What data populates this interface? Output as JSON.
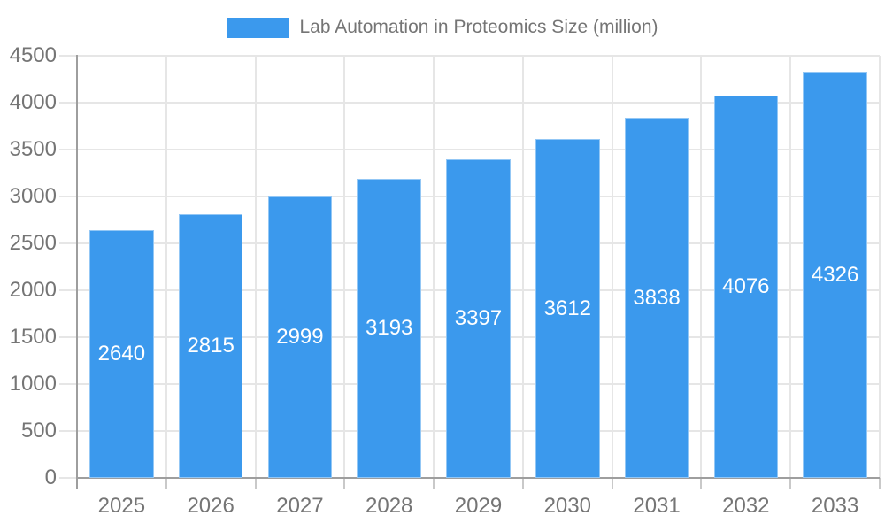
{
  "chart_data": {
    "type": "bar",
    "title": "",
    "series_name": "Lab Automation in Proteomics Size (million)",
    "legend_position": "top",
    "categories": [
      "2025",
      "2026",
      "2027",
      "2028",
      "2029",
      "2030",
      "2031",
      "2032",
      "2033"
    ],
    "values": [
      2640,
      2815,
      2999,
      3193,
      3397,
      3612,
      3838,
      4076,
      4326
    ],
    "xlabel": "",
    "ylabel": "",
    "ylim": [
      0,
      4500
    ],
    "ytick_step": 500,
    "yticks": [
      0,
      500,
      1000,
      1500,
      2000,
      2500,
      3000,
      3500,
      4000,
      4500
    ],
    "grid": true,
    "value_labels_inside_bars": true,
    "colors": {
      "bar": "#3B99ED",
      "value_label": "#FFFFFF",
      "axis_label": "#757575",
      "gridline": "#E6E6E6",
      "axis_line": "#9E9E9E",
      "x_tick": "#C9C9C9"
    }
  }
}
